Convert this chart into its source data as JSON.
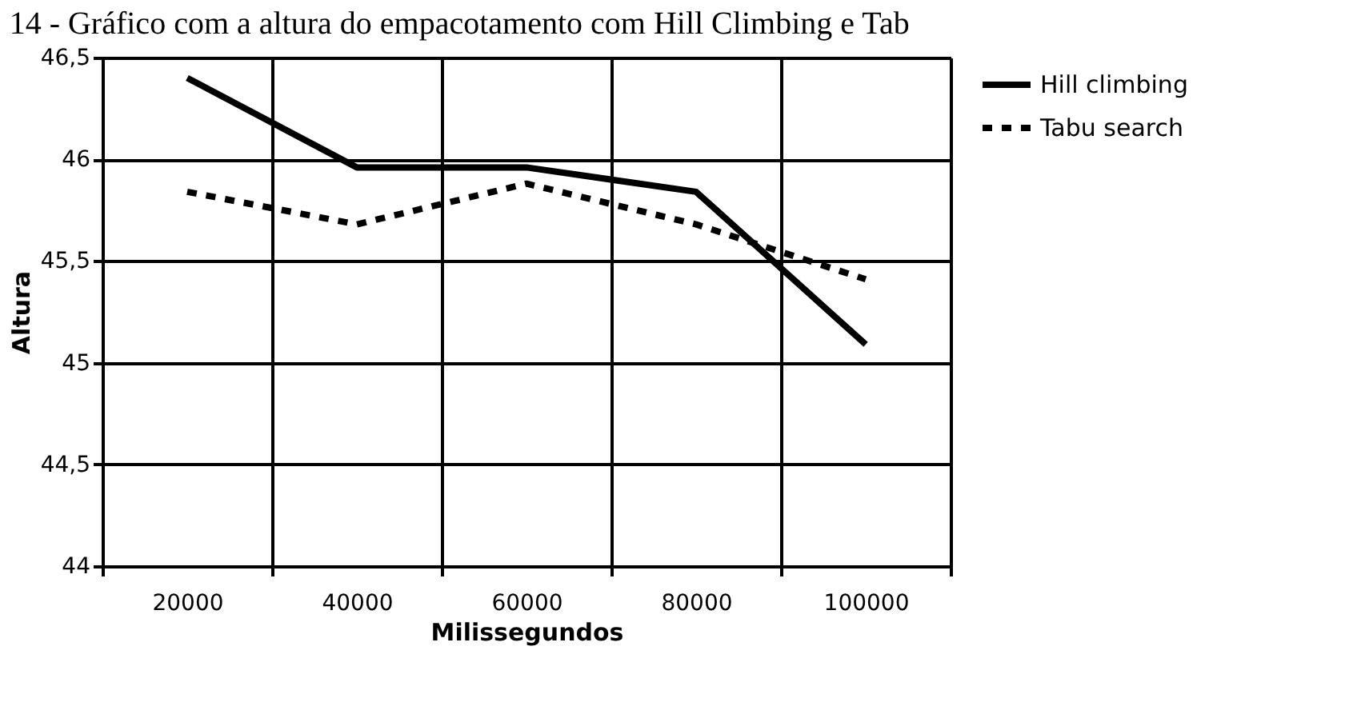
{
  "chart_data": {
    "type": "line",
    "title": "14 - Gráfico com a altura do empacotamento com Hill Climbing e Tab",
    "xlabel": "Milissegundos",
    "ylabel": "Altura",
    "categories": [
      "20000",
      "40000",
      "60000",
      "80000",
      "100000"
    ],
    "series": [
      {
        "name": "Hill climbing",
        "color": "#000000",
        "line_style": "solid",
        "values": [
          46.4,
          45.96,
          45.96,
          45.84,
          45.09
        ]
      },
      {
        "name": "Tabu search",
        "color": "#000000",
        "line_style": "dashed",
        "values": [
          45.84,
          45.68,
          45.88,
          45.68,
          45.41
        ]
      }
    ],
    "ylim": [
      44,
      46.5
    ],
    "yticks": [
      44,
      {
        "value": 44.5,
        "label": "44,5"
      },
      45,
      {
        "value": 45.5,
        "label": "45,5"
      },
      46,
      {
        "value": 46.5,
        "label": "46,5"
      }
    ],
    "grid": true,
    "legend": "right",
    "marker": "none"
  }
}
